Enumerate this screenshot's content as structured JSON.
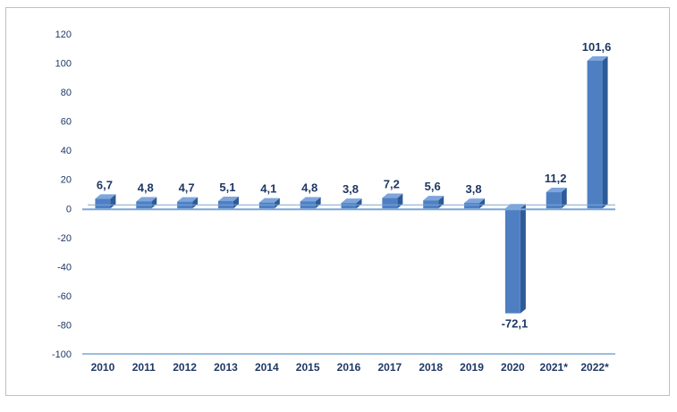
{
  "chart_data": {
    "type": "bar",
    "title": "",
    "xlabel": "",
    "ylabel": "",
    "ylim": [
      -100,
      120
    ],
    "yticks": [
      120,
      100,
      80,
      60,
      40,
      20,
      0,
      -20,
      -40,
      -60,
      -80,
      -100
    ],
    "categories": [
      "2010",
      "2011",
      "2012",
      "2013",
      "2014",
      "2015",
      "2016",
      "2017",
      "2018",
      "2019",
      "2020",
      "2021*",
      "2022*"
    ],
    "values": [
      6.7,
      4.8,
      4.7,
      5.1,
      4.1,
      4.8,
      3.8,
      7.2,
      5.6,
      3.8,
      -72.1,
      11.2,
      101.6
    ],
    "value_labels": [
      "6,7",
      "4,8",
      "4,7",
      "5,1",
      "4,1",
      "4,8",
      "3,8",
      "7,2",
      "5,6",
      "3,8",
      "-72,1",
      "11,2",
      "101,6"
    ],
    "colors": {
      "bar_front": "#4f7fc3",
      "bar_top": "#7ea6dc",
      "bar_side": "#2e5a97",
      "axis": "#7aa7d6",
      "text": "#1f3864"
    }
  }
}
